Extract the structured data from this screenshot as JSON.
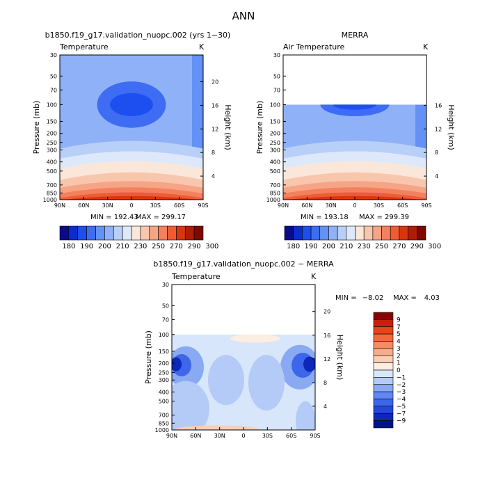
{
  "page_title": "ANN",
  "chart_data": [
    {
      "type": "heatmap",
      "title": "b1850.f19_g17.validation_nuopc.002 (yrs 1−30)",
      "subtitle": "Temperature",
      "units": "K",
      "ylabel": "Pressure (mb)",
      "y2label": "Height (km)",
      "x_ticks": [
        "90N",
        "60N",
        "30N",
        "0",
        "30S",
        "60S",
        "90S"
      ],
      "y_ticks": [
        "30",
        "50",
        "70",
        "100",
        "150",
        "200",
        "250",
        "300",
        "400",
        "500",
        "700",
        "850",
        "1000"
      ],
      "y2_ticks": [
        "20",
        "16",
        "12",
        "8",
        "4"
      ],
      "min_label": "MIN = 192.43",
      "max_label": "MAX = 299.17",
      "colorbar_labels": [
        "180",
        "190",
        "200",
        "210",
        "230",
        "250",
        "270",
        "290",
        "300"
      ],
      "colors": [
        "#0a0a8c",
        "#0c2cd2",
        "#1d4ff0",
        "#3e6cf2",
        "#6391f5",
        "#8fb1f7",
        "#b8cff8",
        "#dde9fa",
        "#fbe7d9",
        "#f8c6ad",
        "#f6a486",
        "#f4805f",
        "#f15a32",
        "#d9350f",
        "#b01c04",
        "#7c0a02"
      ]
    },
    {
      "type": "heatmap",
      "title": "MERRA",
      "subtitle": "Air Temperature",
      "units": "K",
      "ylabel": "Pressure (mb)",
      "y2label": "Height (km)",
      "x_ticks": [
        "90N",
        "60N",
        "30N",
        "0",
        "30S",
        "60S",
        "90S"
      ],
      "y_ticks": [
        "30",
        "50",
        "70",
        "100",
        "150",
        "200",
        "250",
        "300",
        "400",
        "500",
        "700",
        "850",
        "1000"
      ],
      "y2_ticks": [
        "16",
        "12",
        "8",
        "4"
      ],
      "min_label": "MIN = 193.18",
      "max_label": "MAX = 299.39",
      "colorbar_labels": [
        "180",
        "190",
        "200",
        "210",
        "230",
        "250",
        "270",
        "290",
        "300"
      ]
    },
    {
      "type": "heatmap",
      "title": "b1850.f19_g17.validation_nuopc.002 − MERRA",
      "subtitle": "Temperature",
      "units": "K",
      "ylabel": "Pressure (mb)",
      "y2label": "Height (km)",
      "x_ticks": [
        "90N",
        "60N",
        "30N",
        "0",
        "30S",
        "60S",
        "90S"
      ],
      "y_ticks": [
        "30",
        "50",
        "70",
        "100",
        "150",
        "200",
        "250",
        "300",
        "400",
        "500",
        "700",
        "850",
        "1000"
      ],
      "y2_ticks": [
        "20",
        "16",
        "12",
        "8",
        "4"
      ],
      "min_label": "MIN =",
      "min_value": "−8.02",
      "max_label": "MAX =",
      "max_value": "4.03",
      "colorbar_labels": [
        "9",
        "7",
        "5",
        "4",
        "3",
        "2",
        "1",
        "0",
        "−1",
        "−2",
        "−3",
        "−4",
        "−5",
        "−7",
        "−9"
      ],
      "colors": [
        "#8b0000",
        "#c0240c",
        "#e8431b",
        "#f26a3c",
        "#f58c62",
        "#f7ad8c",
        "#f9ceb7",
        "#fdeee2",
        "#d7e6fb",
        "#b3cbf6",
        "#89aaf3",
        "#6088ef",
        "#3d66ea",
        "#2347dc",
        "#0d28b8",
        "#001487"
      ]
    }
  ]
}
